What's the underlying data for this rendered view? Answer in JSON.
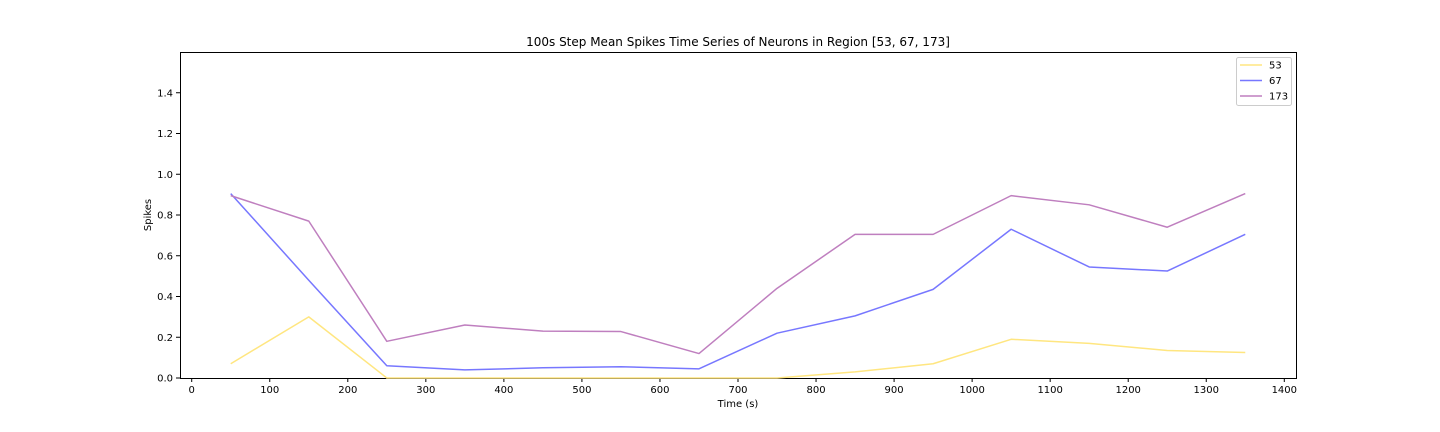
{
  "chart_data": {
    "type": "line",
    "title": "100s Step Mean Spikes Time Series of Neurons in Region [53, 67, 173]",
    "xlabel": "Time (s)",
    "ylabel": "Spikes",
    "xlim": [
      -15,
      1415
    ],
    "ylim": [
      0,
      1.6
    ],
    "x_ticks": [
      0,
      100,
      200,
      300,
      400,
      500,
      600,
      700,
      800,
      900,
      1000,
      1100,
      1200,
      1300,
      1400
    ],
    "y_ticks": [
      0.0,
      0.2,
      0.4,
      0.6,
      0.8,
      1.0,
      1.2,
      1.4
    ],
    "x_tick_labels": [
      "0",
      "100",
      "200",
      "300",
      "400",
      "500",
      "600",
      "700",
      "800",
      "900",
      "1000",
      "1100",
      "1200",
      "1300",
      "1400"
    ],
    "y_tick_labels": [
      "0.0",
      "0.2",
      "0.4",
      "0.6",
      "0.8",
      "1.0",
      "1.2",
      "1.4"
    ],
    "grid": false,
    "legend_position": "top-right",
    "x": [
      50,
      150,
      250,
      350,
      450,
      550,
      650,
      750,
      850,
      950,
      1050,
      1150,
      1250,
      1350
    ],
    "series": [
      {
        "name": "53",
        "color": "#ffe680",
        "values": [
          0.07,
          0.3,
          0.0,
          0.0,
          0.0,
          0.0,
          0.0,
          0.0,
          0.03,
          0.07,
          0.19,
          0.17,
          0.135,
          0.125
        ]
      },
      {
        "name": "67",
        "color": "#7777ff",
        "values": [
          0.905,
          0.48,
          0.06,
          0.04,
          0.05,
          0.055,
          0.045,
          0.22,
          0.305,
          0.435,
          0.73,
          0.545,
          0.525,
          0.705
        ]
      },
      {
        "name": "173",
        "color": "#bf7fbf",
        "values": [
          0.895,
          0.77,
          0.18,
          0.26,
          0.23,
          0.228,
          0.12,
          0.44,
          0.705,
          0.705,
          0.895,
          0.85,
          0.74,
          0.905
        ]
      }
    ]
  }
}
